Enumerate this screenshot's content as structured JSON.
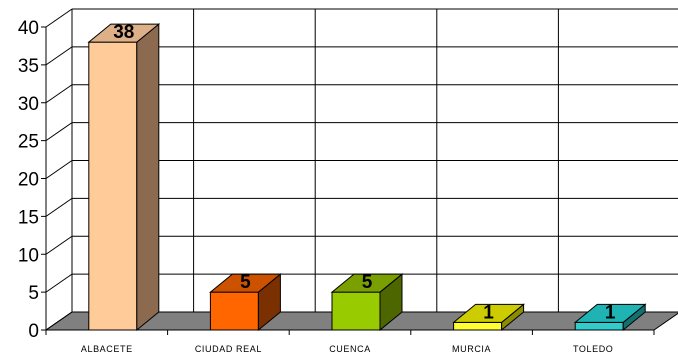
{
  "chart_data": {
    "type": "bar",
    "title": "",
    "xlabel": "",
    "ylabel": "",
    "categories": [
      "ALBACETE",
      "CIUDAD REAL",
      "CUENCA",
      "MURCIA",
      "TOLEDO"
    ],
    "values": [
      38,
      5,
      5,
      1,
      1
    ],
    "data_labels": [
      "38",
      "5",
      "5",
      "1",
      "1"
    ],
    "ylim": [
      0,
      40
    ],
    "yticks": [
      "0",
      "5",
      "10",
      "15",
      "20",
      "25",
      "30",
      "35",
      "40"
    ],
    "grid": true,
    "three_d": true,
    "legend": "none",
    "colors": {
      "bars": [
        {
          "front": "#FFCC99",
          "top": "#DDB088",
          "side": "#8B6A50"
        },
        {
          "front": "#FF6600",
          "top": "#CC5200",
          "side": "#7A3000"
        },
        {
          "front": "#99CC00",
          "top": "#7A9F00",
          "side": "#4E6600"
        },
        {
          "front": "#FFFF33",
          "top": "#CCCC00",
          "side": "#8C8C00"
        },
        {
          "front": "#33CCCC",
          "top": "#1FB3B3",
          "side": "#137070"
        }
      ],
      "floor": "#808080",
      "grid": "#000000"
    }
  }
}
